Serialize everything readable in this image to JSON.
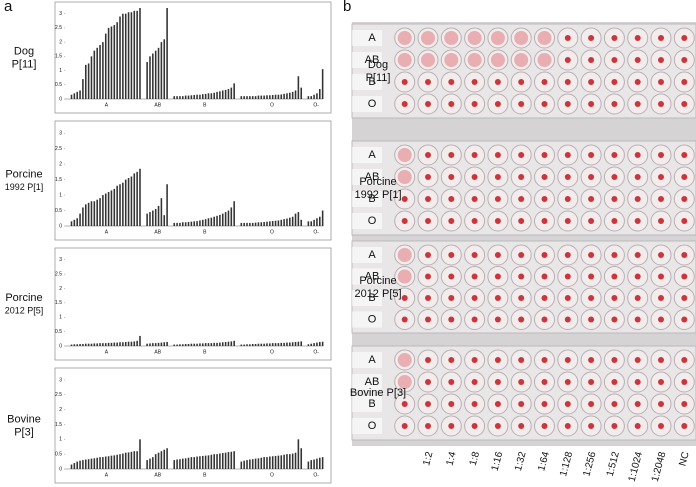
{
  "panel_a": {
    "label": "a"
  },
  "panel_b": {
    "label": "b",
    "columns": [
      "1:2",
      "1:4",
      "1:8",
      "1:16",
      "1:32",
      "1:64",
      "1:128",
      "1:256",
      "1:512",
      "1:1024",
      "1:2048",
      "NC"
    ],
    "plates": [
      {
        "name": [
          "Dog",
          "P[11]"
        ],
        "rows": [
          "A",
          "AB",
          "B",
          "O"
        ]
      },
      {
        "name": [
          "Porcine",
          "1992 P[1]"
        ],
        "rows": [
          "A",
          "AB",
          "B",
          "O"
        ]
      },
      {
        "name": [
          "Porcine",
          "2012 P[5]"
        ],
        "rows": [
          "A",
          "AB",
          "B",
          "O"
        ]
      },
      {
        "name": [
          "Bovine P[3]"
        ],
        "rows": [
          "A",
          "AB",
          "B",
          "O"
        ]
      }
    ]
  },
  "chart_data": [
    {
      "type": "bar",
      "title": [
        "Dog",
        "P[11]"
      ],
      "color": "#333333",
      "ylim": [
        0,
        3.2
      ],
      "yticks": [
        0,
        0.5,
        1,
        1.5,
        2,
        2.5,
        3
      ],
      "groups": [
        {
          "name": "A",
          "values": [
            0.15,
            0.2,
            0.25,
            0.3,
            0.7,
            1.2,
            1.25,
            1.5,
            1.7,
            1.8,
            1.9,
            2.0,
            2.3,
            2.5,
            2.55,
            2.6,
            2.7,
            2.9,
            3.0,
            3.0,
            3.05,
            3.05,
            3.1,
            3.1,
            3.2
          ]
        },
        {
          "name": "AB",
          "values": [
            1.3,
            1.5,
            1.6,
            1.7,
            1.8,
            2.0,
            2.1,
            3.2
          ]
        },
        {
          "name": "B",
          "values": [
            0.1,
            0.1,
            0.1,
            0.1,
            0.12,
            0.12,
            0.13,
            0.14,
            0.15,
            0.15,
            0.17,
            0.18,
            0.2,
            0.2,
            0.22,
            0.25,
            0.27,
            0.3,
            0.32,
            0.35,
            0.4,
            0.55
          ]
        },
        {
          "name": "O",
          "values": [
            0.1,
            0.1,
            0.1,
            0.1,
            0.1,
            0.1,
            0.12,
            0.12,
            0.12,
            0.13,
            0.13,
            0.14,
            0.15,
            0.15,
            0.16,
            0.18,
            0.2,
            0.22,
            0.25,
            0.3,
            0.8,
            0.4
          ]
        },
        {
          "name": "O-",
          "values": [
            0.1,
            0.1,
            0.15,
            0.2,
            0.35,
            1.05
          ]
        }
      ]
    },
    {
      "type": "bar",
      "title": [
        "Porcine",
        "1992 P[1]"
      ],
      "color": "#333333",
      "ylim": [
        0,
        3.2
      ],
      "yticks": [
        0,
        0.5,
        1,
        1.5,
        2,
        2.5,
        3
      ],
      "groups": [
        {
          "name": "A",
          "values": [
            0.15,
            0.2,
            0.25,
            0.4,
            0.6,
            0.7,
            0.75,
            0.8,
            0.8,
            0.85,
            0.9,
            1.0,
            1.05,
            1.1,
            1.15,
            1.2,
            1.3,
            1.35,
            1.4,
            1.5,
            1.55,
            1.6,
            1.7,
            1.75,
            1.85
          ]
        },
        {
          "name": "AB",
          "values": [
            0.4,
            0.45,
            0.5,
            0.55,
            0.65,
            0.9,
            0.35,
            1.35
          ]
        },
        {
          "name": "B",
          "values": [
            0.1,
            0.1,
            0.1,
            0.12,
            0.12,
            0.13,
            0.14,
            0.15,
            0.16,
            0.18,
            0.2,
            0.22,
            0.25,
            0.27,
            0.3,
            0.33,
            0.36,
            0.4,
            0.45,
            0.5,
            0.6,
            0.8
          ]
        },
        {
          "name": "O",
          "values": [
            0.1,
            0.1,
            0.1,
            0.1,
            0.1,
            0.11,
            0.12,
            0.12,
            0.13,
            0.14,
            0.15,
            0.16,
            0.17,
            0.18,
            0.2,
            0.22,
            0.24,
            0.27,
            0.3,
            0.4,
            0.45,
            0.2
          ]
        },
        {
          "name": "O-",
          "values": [
            0.15,
            0.15,
            0.2,
            0.25,
            0.3,
            0.5
          ]
        }
      ]
    },
    {
      "type": "bar",
      "title": [
        "Porcine",
        "2012 P[5]"
      ],
      "color": "#333333",
      "ylim": [
        0,
        3.2
      ],
      "yticks": [
        0,
        0.5,
        1,
        1.5,
        2,
        2.5,
        3
      ],
      "groups": [
        {
          "name": "A",
          "values": [
            0.05,
            0.06,
            0.06,
            0.07,
            0.07,
            0.08,
            0.08,
            0.08,
            0.09,
            0.09,
            0.1,
            0.1,
            0.1,
            0.11,
            0.11,
            0.12,
            0.12,
            0.13,
            0.13,
            0.14,
            0.15,
            0.15,
            0.16,
            0.18,
            0.35
          ]
        },
        {
          "name": "AB",
          "values": [
            0.08,
            0.09,
            0.1,
            0.1,
            0.11,
            0.12,
            0.13,
            0.14
          ]
        },
        {
          "name": "B",
          "values": [
            0.05,
            0.05,
            0.06,
            0.06,
            0.07,
            0.07,
            0.08,
            0.08,
            0.08,
            0.09,
            0.09,
            0.1,
            0.1,
            0.1,
            0.11,
            0.11,
            0.12,
            0.13,
            0.14,
            0.15,
            0.16,
            0.18
          ]
        },
        {
          "name": "O",
          "values": [
            0.05,
            0.05,
            0.06,
            0.06,
            0.07,
            0.07,
            0.08,
            0.08,
            0.08,
            0.09,
            0.09,
            0.1,
            0.1,
            0.1,
            0.11,
            0.11,
            0.12,
            0.12,
            0.13,
            0.14,
            0.15,
            0.16
          ]
        },
        {
          "name": "O-",
          "values": [
            0.06,
            0.08,
            0.1,
            0.12,
            0.14,
            0.15
          ]
        }
      ]
    },
    {
      "type": "bar",
      "title": [
        "Bovine",
        "P[3]"
      ],
      "color": "#333333",
      "ylim": [
        0,
        3.2
      ],
      "yticks": [
        0,
        0.5,
        1,
        1.5,
        2,
        2.5,
        3
      ],
      "groups": [
        {
          "name": "A",
          "values": [
            0.15,
            0.2,
            0.25,
            0.28,
            0.3,
            0.32,
            0.33,
            0.35,
            0.36,
            0.38,
            0.4,
            0.4,
            0.42,
            0.43,
            0.45,
            0.46,
            0.48,
            0.5,
            0.52,
            0.55,
            0.56,
            0.58,
            0.6,
            0.6,
            1.0
          ]
        },
        {
          "name": "AB",
          "values": [
            0.3,
            0.35,
            0.4,
            0.5,
            0.55,
            0.6,
            0.65,
            0.7
          ]
        },
        {
          "name": "B",
          "values": [
            0.3,
            0.32,
            0.33,
            0.35,
            0.36,
            0.38,
            0.4,
            0.4,
            0.42,
            0.43,
            0.44,
            0.45,
            0.46,
            0.48,
            0.5,
            0.5,
            0.52,
            0.54,
            0.55,
            0.57,
            0.58,
            0.6
          ]
        },
        {
          "name": "O",
          "values": [
            0.25,
            0.28,
            0.3,
            0.32,
            0.33,
            0.35,
            0.36,
            0.38,
            0.4,
            0.4,
            0.42,
            0.43,
            0.44,
            0.45,
            0.46,
            0.48,
            0.5,
            0.5,
            0.52,
            0.55,
            1.0,
            0.7
          ]
        },
        {
          "name": "O-",
          "values": [
            0.25,
            0.3,
            0.32,
            0.35,
            0.38,
            0.4
          ]
        }
      ]
    }
  ]
}
